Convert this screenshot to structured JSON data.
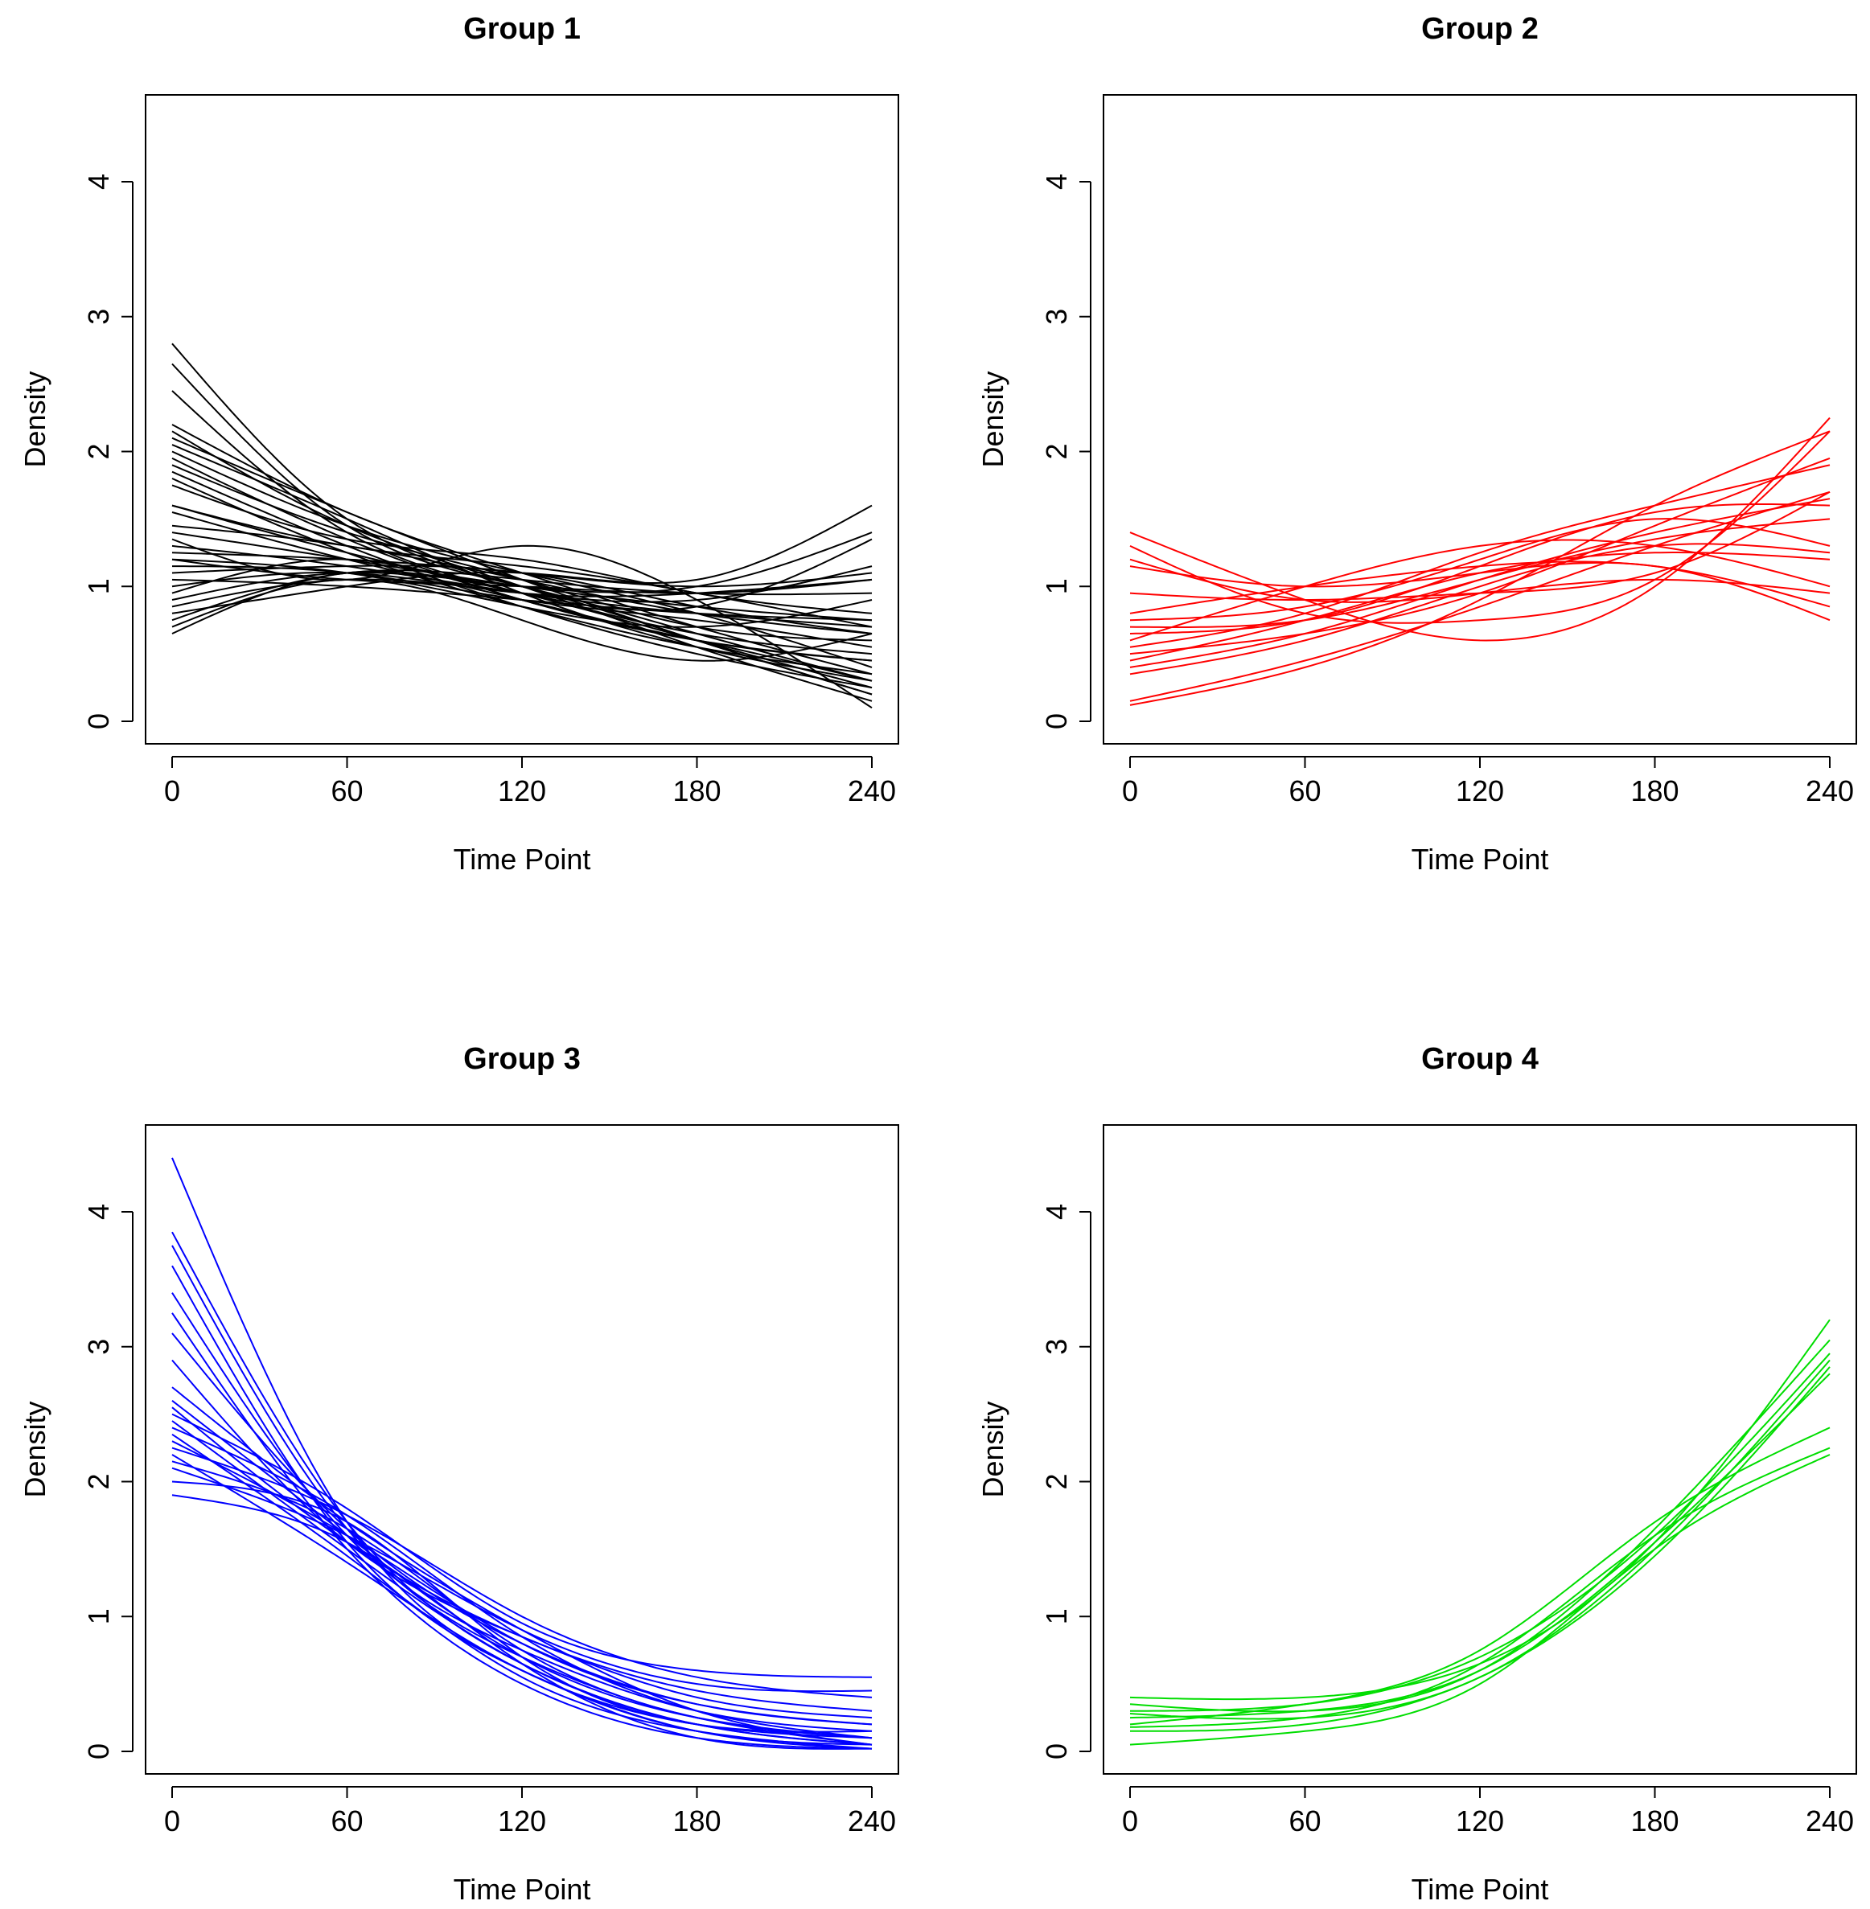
{
  "chart_data": [
    {
      "type": "line",
      "title": "Group 1",
      "xlabel": "Time Point",
      "ylabel": "Density",
      "xlim": [
        0,
        240
      ],
      "ylim": [
        0,
        4.6
      ],
      "x_ticks": [
        "0",
        "60",
        "120",
        "180",
        "240"
      ],
      "y_ticks": [
        "0",
        "1",
        "2",
        "3",
        "4"
      ],
      "color": "#000000",
      "grid": false,
      "legend": "none",
      "x": [
        0,
        60,
        120,
        180,
        240
      ],
      "series": [
        {
          "values": [
            2.8,
            1.5,
            1.0,
            0.6,
            0.2
          ]
        },
        {
          "values": [
            2.65,
            1.45,
            1.0,
            0.65,
            0.3
          ]
        },
        {
          "values": [
            2.45,
            1.4,
            0.95,
            0.6,
            0.25
          ]
        },
        {
          "values": [
            2.2,
            1.55,
            1.1,
            0.7,
            0.35
          ]
        },
        {
          "values": [
            2.15,
            1.45,
            1.0,
            0.55,
            0.15
          ]
        },
        {
          "values": [
            2.1,
            1.55,
            1.05,
            0.6,
            0.2
          ]
        },
        {
          "values": [
            2.05,
            1.5,
            0.95,
            0.55,
            0.3
          ]
        },
        {
          "values": [
            2.0,
            1.45,
            1.1,
            0.8,
            0.4
          ]
        },
        {
          "values": [
            1.95,
            1.35,
            0.9,
            0.6,
            0.45
          ]
        },
        {
          "values": [
            1.9,
            1.4,
            1.05,
            0.7,
            0.6
          ]
        },
        {
          "values": [
            1.85,
            1.3,
            0.85,
            0.5,
            0.25
          ]
        },
        {
          "values": [
            1.8,
            1.25,
            0.85,
            0.55,
            0.35
          ]
        },
        {
          "values": [
            1.75,
            1.35,
            1.2,
            0.95,
            0.8
          ]
        },
        {
          "values": [
            1.6,
            1.3,
            1.15,
            0.95,
            0.7
          ]
        },
        {
          "values": [
            1.6,
            1.25,
            0.95,
            0.65,
            0.5
          ]
        },
        {
          "values": [
            1.55,
            1.2,
            0.9,
            0.6,
            0.45
          ]
        },
        {
          "values": [
            1.45,
            1.3,
            1.05,
            0.8,
            0.65
          ]
        },
        {
          "values": [
            1.4,
            1.2,
            1.0,
            0.85,
            0.75
          ]
        },
        {
          "values": [
            1.35,
            1.05,
            1.3,
            0.9,
            0.1
          ]
        },
        {
          "values": [
            1.3,
            1.15,
            0.95,
            0.8,
            0.7
          ]
        },
        {
          "values": [
            1.25,
            1.2,
            1.1,
            1.0,
            1.1
          ]
        },
        {
          "values": [
            1.2,
            1.1,
            0.85,
            0.7,
            0.9
          ]
        },
        {
          "values": [
            1.2,
            1.05,
            1.0,
            0.95,
            1.05
          ]
        },
        {
          "values": [
            1.15,
            1.1,
            0.9,
            0.75,
            0.55
          ]
        },
        {
          "values": [
            1.1,
            1.15,
            1.1,
            0.85,
            0.65
          ]
        },
        {
          "values": [
            1.05,
            1.0,
            0.9,
            0.8,
            0.75
          ]
        },
        {
          "values": [
            1.0,
            1.1,
            0.95,
            0.95,
            1.05
          ]
        },
        {
          "values": [
            0.95,
            1.2,
            0.9,
            0.6,
            0.3
          ]
        },
        {
          "values": [
            0.9,
            1.1,
            1.0,
            1.0,
            1.4
          ]
        },
        {
          "values": [
            0.85,
            1.05,
            0.95,
            0.9,
            1.15
          ]
        },
        {
          "values": [
            0.8,
            1.0,
            1.1,
            1.05,
            1.6
          ]
        },
        {
          "values": [
            0.75,
            1.1,
            1.05,
            0.95,
            0.95
          ]
        },
        {
          "values": [
            0.7,
            1.05,
            0.75,
            0.45,
            0.65
          ]
        },
        {
          "values": [
            0.65,
            1.1,
            0.95,
            0.85,
            1.35
          ]
        }
      ]
    },
    {
      "type": "line",
      "title": "Group 2",
      "xlabel": "Time Point",
      "ylabel": "Density",
      "xlim": [
        0,
        240
      ],
      "ylim": [
        0,
        4.6
      ],
      "x_ticks": [
        "0",
        "60",
        "120",
        "180",
        "240"
      ],
      "y_ticks": [
        "0",
        "1",
        "2",
        "3",
        "4"
      ],
      "color": "#ff0000",
      "grid": false,
      "legend": "none",
      "x": [
        0,
        60,
        120,
        180,
        240
      ],
      "series": [
        {
          "values": [
            1.4,
            0.9,
            0.6,
            1.0,
            2.25
          ]
        },
        {
          "values": [
            1.3,
            0.8,
            0.75,
            1.05,
            2.15
          ]
        },
        {
          "values": [
            1.2,
            0.9,
            0.95,
            1.05,
            0.95
          ]
        },
        {
          "values": [
            1.15,
            1.0,
            1.1,
            1.15,
            0.75
          ]
        },
        {
          "values": [
            0.95,
            0.9,
            0.95,
            1.1,
            1.7
          ]
        },
        {
          "values": [
            0.8,
            1.0,
            1.15,
            1.15,
            0.85
          ]
        },
        {
          "values": [
            0.75,
            0.85,
            1.2,
            1.5,
            1.3
          ]
        },
        {
          "values": [
            0.7,
            0.75,
            1.05,
            1.35,
            1.5
          ]
        },
        {
          "values": [
            0.65,
            0.75,
            1.15,
            1.55,
            1.6
          ]
        },
        {
          "values": [
            0.6,
            1.0,
            1.3,
            1.3,
            1.0
          ]
        },
        {
          "values": [
            0.55,
            0.8,
            1.25,
            1.6,
            1.9
          ]
        },
        {
          "values": [
            0.5,
            0.65,
            0.95,
            1.45,
            1.95
          ]
        },
        {
          "values": [
            0.45,
            0.75,
            1.1,
            1.25,
            1.2
          ]
        },
        {
          "values": [
            0.4,
            0.65,
            1.05,
            1.4,
            1.65
          ]
        },
        {
          "values": [
            0.35,
            0.6,
            1.0,
            1.3,
            1.25
          ]
        },
        {
          "values": [
            0.15,
            0.45,
            0.85,
            1.3,
            1.7
          ]
        },
        {
          "values": [
            0.12,
            0.4,
            0.9,
            1.6,
            2.15
          ]
        }
      ]
    },
    {
      "type": "line",
      "title": "Group 3",
      "xlabel": "Time Point",
      "ylabel": "Density",
      "xlim": [
        0,
        240
      ],
      "ylim": [
        0,
        4.6
      ],
      "x_ticks": [
        "0",
        "60",
        "120",
        "180",
        "240"
      ],
      "y_ticks": [
        "0",
        "1",
        "2",
        "3",
        "4"
      ],
      "color": "#0000ff",
      "grid": false,
      "legend": "none",
      "x": [
        0,
        60,
        120,
        180,
        240
      ],
      "series": [
        {
          "values": [
            4.4,
            1.7,
            0.6,
            0.15,
            0.05
          ]
        },
        {
          "values": [
            3.85,
            1.7,
            0.65,
            0.2,
            0.05
          ]
        },
        {
          "values": [
            3.75,
            1.65,
            0.7,
            0.25,
            0.1
          ]
        },
        {
          "values": [
            3.6,
            1.55,
            0.6,
            0.15,
            0.02
          ]
        },
        {
          "values": [
            3.4,
            1.6,
            0.75,
            0.3,
            0.15
          ]
        },
        {
          "values": [
            3.25,
            1.5,
            0.5,
            0.1,
            0.02
          ]
        },
        {
          "values": [
            3.1,
            1.65,
            0.8,
            0.35,
            0.2
          ]
        },
        {
          "values": [
            2.9,
            1.55,
            0.85,
            0.4,
            0.25
          ]
        },
        {
          "values": [
            2.7,
            1.7,
            0.9,
            0.3,
            0.05
          ]
        },
        {
          "values": [
            2.6,
            1.6,
            0.7,
            0.25,
            0.1
          ]
        },
        {
          "values": [
            2.55,
            1.55,
            0.85,
            0.45,
            0.3
          ]
        },
        {
          "values": [
            2.5,
            1.8,
            0.95,
            0.6,
            0.55
          ]
        },
        {
          "values": [
            2.45,
            1.5,
            0.65,
            0.2,
            0.05
          ]
        },
        {
          "values": [
            2.4,
            1.75,
            0.85,
            0.3,
            0.1
          ]
        },
        {
          "values": [
            2.35,
            1.45,
            0.55,
            0.15,
            0.02
          ]
        },
        {
          "values": [
            2.3,
            1.6,
            0.8,
            0.35,
            0.2
          ]
        },
        {
          "values": [
            2.25,
            1.75,
            1.0,
            0.55,
            0.4
          ]
        },
        {
          "values": [
            2.2,
            1.4,
            0.6,
            0.2,
            0.1
          ]
        },
        {
          "values": [
            2.15,
            1.65,
            0.75,
            0.25,
            0.05
          ]
        },
        {
          "values": [
            2.1,
            1.6,
            0.9,
            0.5,
            0.45
          ]
        },
        {
          "values": [
            2.0,
            1.7,
            0.7,
            0.2,
            0.15
          ]
        },
        {
          "values": [
            1.9,
            1.55,
            0.65,
            0.1,
            0.02
          ]
        }
      ]
    },
    {
      "type": "line",
      "title": "Group 4",
      "xlabel": "Time Point",
      "ylabel": "Density",
      "xlim": [
        0,
        240
      ],
      "ylim": [
        0,
        4.6
      ],
      "x_ticks": [
        "0",
        "60",
        "120",
        "180",
        "240"
      ],
      "y_ticks": [
        "0",
        "1",
        "2",
        "3",
        "4"
      ],
      "color": "#00dd00",
      "grid": false,
      "legend": "none",
      "x": [
        0,
        60,
        120,
        180,
        240
      ],
      "series": [
        {
          "values": [
            0.4,
            0.4,
            0.65,
            1.55,
            3.2
          ]
        },
        {
          "values": [
            0.35,
            0.3,
            0.6,
            1.65,
            3.05
          ]
        },
        {
          "values": [
            0.3,
            0.35,
            0.7,
            1.6,
            2.95
          ]
        },
        {
          "values": [
            0.28,
            0.25,
            0.55,
            1.5,
            2.9
          ]
        },
        {
          "values": [
            0.25,
            0.3,
            0.6,
            1.55,
            2.8
          ]
        },
        {
          "values": [
            0.2,
            0.35,
            0.75,
            1.7,
            2.4
          ]
        },
        {
          "values": [
            0.18,
            0.25,
            0.65,
            1.6,
            2.25
          ]
        },
        {
          "values": [
            0.15,
            0.2,
            0.55,
            1.45,
            2.85
          ]
        },
        {
          "values": [
            0.05,
            0.15,
            0.5,
            1.5,
            2.2
          ]
        }
      ]
    }
  ]
}
